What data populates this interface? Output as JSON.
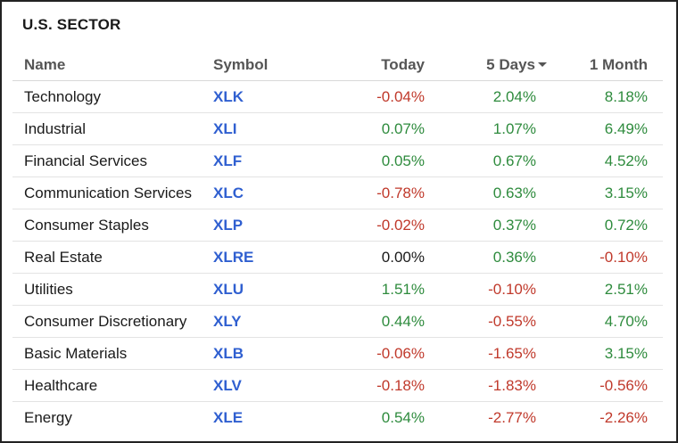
{
  "title": "U.S. SECTOR",
  "headers": {
    "name": "Name",
    "symbol": "Symbol",
    "today": "Today",
    "five_days": "5 Days",
    "one_month": "1 Month",
    "sort_icon": "caret-down-icon"
  },
  "colors": {
    "positive": "#2e8b3d",
    "negative": "#c0392b",
    "symbol_link": "#2f5fd0"
  },
  "rows": [
    {
      "name": "Technology",
      "symbol": "XLK",
      "today": "-0.04%",
      "five_days": "2.04%",
      "one_month": "8.18%"
    },
    {
      "name": "Industrial",
      "symbol": "XLI",
      "today": "0.07%",
      "five_days": "1.07%",
      "one_month": "6.49%"
    },
    {
      "name": "Financial Services",
      "symbol": "XLF",
      "today": "0.05%",
      "five_days": "0.67%",
      "one_month": "4.52%"
    },
    {
      "name": "Communication Services",
      "symbol": "XLC",
      "today": "-0.78%",
      "five_days": "0.63%",
      "one_month": "3.15%"
    },
    {
      "name": "Consumer Staples",
      "symbol": "XLP",
      "today": "-0.02%",
      "five_days": "0.37%",
      "one_month": "0.72%"
    },
    {
      "name": "Real Estate",
      "symbol": "XLRE",
      "today": "0.00%",
      "five_days": "0.36%",
      "one_month": "-0.10%"
    },
    {
      "name": "Utilities",
      "symbol": "XLU",
      "today": "1.51%",
      "five_days": "-0.10%",
      "one_month": "2.51%"
    },
    {
      "name": "Consumer Discretionary",
      "symbol": "XLY",
      "today": "0.44%",
      "five_days": "-0.55%",
      "one_month": "4.70%"
    },
    {
      "name": "Basic Materials",
      "symbol": "XLB",
      "today": "-0.06%",
      "five_days": "-1.65%",
      "one_month": "3.15%"
    },
    {
      "name": "Healthcare",
      "symbol": "XLV",
      "today": "-0.18%",
      "five_days": "-1.83%",
      "one_month": "-0.56%"
    },
    {
      "name": "Energy",
      "symbol": "XLE",
      "today": "0.54%",
      "five_days": "-2.77%",
      "one_month": "-2.26%"
    }
  ]
}
